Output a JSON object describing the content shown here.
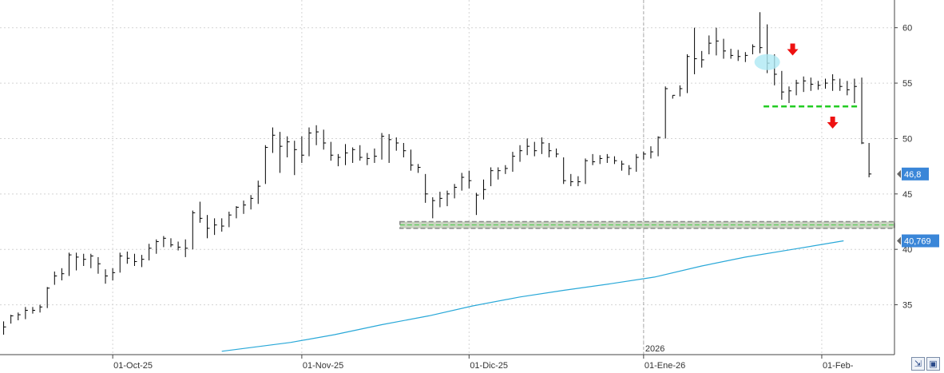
{
  "chart_data": {
    "type": "ohlc",
    "y_axis": {
      "side": "right",
      "ticks": [
        35,
        40,
        45,
        50,
        55,
        60
      ],
      "range": [
        30.5,
        62.5
      ]
    },
    "x_axis": {
      "ticks": [
        {
          "label": "01-Oct-25",
          "index": 31
        },
        {
          "label": "01-Nov-25",
          "index": 83
        },
        {
          "label": "01-Dic-25",
          "index": 129
        },
        {
          "label": "01-Ene-26",
          "index": 177
        },
        {
          "label": "01-Feb-",
          "index": 226
        }
      ],
      "year_marker": {
        "label": "2026",
        "index": 177
      },
      "range": [
        0,
        246
      ]
    },
    "last_price": {
      "label": "46,8",
      "value": 46.8
    },
    "moving_average": {
      "label": "40,769",
      "value": 40.769,
      "color": "#29a8d8",
      "points": [
        [
          61,
          30.8
        ],
        [
          80,
          31.6
        ],
        [
          92,
          32.3
        ],
        [
          105,
          33.2
        ],
        [
          118,
          34.0
        ],
        [
          130,
          34.9
        ],
        [
          143,
          35.7
        ],
        [
          155,
          36.3
        ],
        [
          168,
          36.9
        ],
        [
          180,
          37.5
        ],
        [
          193,
          38.5
        ],
        [
          205,
          39.3
        ],
        [
          218,
          40.0
        ],
        [
          232,
          40.769
        ]
      ]
    },
    "bars": [
      [
        1,
        33.5,
        32.3,
        33.0
      ],
      [
        3,
        34.1,
        33.3,
        34.0
      ],
      [
        5,
        34.3,
        33.6,
        34.1
      ],
      [
        7,
        34.8,
        33.7,
        34.5
      ],
      [
        9,
        34.8,
        34.2,
        34.5
      ],
      [
        11,
        35.0,
        34.3,
        34.8
      ],
      [
        13,
        36.6,
        34.7,
        36.5
      ],
      [
        15,
        38.0,
        36.8,
        37.6
      ],
      [
        17,
        38.3,
        37.2,
        37.8
      ],
      [
        19,
        39.7,
        37.6,
        39.5
      ],
      [
        21,
        39.7,
        38.1,
        39.3
      ],
      [
        23,
        39.6,
        38.5,
        39.1
      ],
      [
        25,
        39.6,
        38.3,
        39.4
      ],
      [
        27,
        39.3,
        37.8,
        38.7
      ],
      [
        29,
        38.2,
        36.9,
        37.6
      ],
      [
        31,
        38.3,
        37.2,
        37.9
      ],
      [
        33,
        39.7,
        37.9,
        39.4
      ],
      [
        35,
        39.8,
        38.7,
        39.2
      ],
      [
        37,
        39.6,
        38.5,
        38.9
      ],
      [
        39,
        39.5,
        38.4,
        39.1
      ],
      [
        41,
        40.5,
        39.0,
        40.1
      ],
      [
        43,
        40.9,
        39.6,
        40.7
      ],
      [
        45,
        41.2,
        40.2,
        41.0
      ],
      [
        47,
        41.0,
        40.2,
        40.4
      ],
      [
        49,
        40.7,
        39.9,
        40.2
      ],
      [
        51,
        40.9,
        39.3,
        40.1
      ],
      [
        53,
        43.5,
        40.0,
        43.3
      ],
      [
        55,
        44.3,
        42.4,
        42.8
      ],
      [
        57,
        43.1,
        41.0,
        41.9
      ],
      [
        59,
        42.8,
        41.3,
        42.2
      ],
      [
        61,
        42.8,
        41.6,
        42.1
      ],
      [
        63,
        43.4,
        42.0,
        43.1
      ],
      [
        65,
        43.9,
        42.8,
        43.8
      ],
      [
        67,
        44.4,
        43.2,
        44.0
      ],
      [
        69,
        44.9,
        43.6,
        44.6
      ],
      [
        71,
        46.2,
        44.1,
        45.7
      ],
      [
        73,
        49.4,
        45.9,
        49.2
      ],
      [
        75,
        51.0,
        48.7,
        50.3
      ],
      [
        77,
        50.6,
        46.9,
        49.3
      ],
      [
        79,
        50.2,
        48.3,
        49.7
      ],
      [
        81,
        49.8,
        46.7,
        49.0
      ],
      [
        83,
        50.2,
        47.8,
        48.5
      ],
      [
        85,
        51.0,
        48.4,
        50.5
      ],
      [
        87,
        51.2,
        49.4,
        50.6
      ],
      [
        89,
        50.8,
        49.0,
        49.6
      ],
      [
        91,
        49.7,
        48.0,
        48.5
      ],
      [
        93,
        48.6,
        47.5,
        48.3
      ],
      [
        95,
        49.5,
        47.6,
        48.7
      ],
      [
        97,
        49.2,
        47.8,
        49.0
      ],
      [
        99,
        49.4,
        48.0,
        48.3
      ],
      [
        101,
        48.7,
        47.6,
        48.2
      ],
      [
        103,
        49.1,
        47.8,
        48.4
      ],
      [
        105,
        50.5,
        48.1,
        50.2
      ],
      [
        107,
        50.4,
        47.8,
        49.9
      ],
      [
        109,
        50.1,
        48.9,
        49.6
      ],
      [
        111,
        49.6,
        48.3,
        48.9
      ],
      [
        113,
        49.0,
        47.1,
        47.6
      ],
      [
        115,
        47.7,
        46.9,
        47.4
      ],
      [
        117,
        46.8,
        44.2,
        45.0
      ],
      [
        119,
        44.7,
        42.8,
        44.4
      ],
      [
        121,
        45.2,
        43.8,
        44.6
      ],
      [
        123,
        45.3,
        43.9,
        45.0
      ],
      [
        125,
        45.9,
        44.6,
        45.6
      ],
      [
        127,
        46.9,
        45.3,
        46.5
      ],
      [
        129,
        47.1,
        45.5,
        46.2
      ],
      [
        131,
        45.1,
        43.1,
        44.9
      ],
      [
        133,
        46.3,
        44.5,
        45.4
      ],
      [
        135,
        47.4,
        45.7,
        47.1
      ],
      [
        137,
        47.4,
        46.3,
        47.1
      ],
      [
        139,
        47.6,
        46.8,
        47.3
      ],
      [
        141,
        48.8,
        47.0,
        48.4
      ],
      [
        143,
        49.4,
        47.9,
        48.9
      ],
      [
        145,
        50.0,
        48.5,
        49.3
      ],
      [
        147,
        49.7,
        48.4,
        48.9
      ],
      [
        149,
        50.1,
        48.6,
        49.6
      ],
      [
        151,
        49.6,
        48.3,
        48.9
      ],
      [
        153,
        49.1,
        48.3,
        48.6
      ],
      [
        155,
        48.3,
        45.9,
        46.2
      ],
      [
        157,
        46.8,
        45.7,
        46.1
      ],
      [
        159,
        46.6,
        45.7,
        46.1
      ],
      [
        161,
        48.2,
        45.9,
        48.0
      ],
      [
        163,
        48.6,
        47.6,
        47.9
      ],
      [
        165,
        48.5,
        47.7,
        48.2
      ],
      [
        167,
        48.6,
        47.8,
        48.3
      ],
      [
        169,
        48.4,
        47.7,
        48.0
      ],
      [
        171,
        48.0,
        47.1,
        47.7
      ],
      [
        173,
        47.6,
        46.7,
        47.3
      ],
      [
        175,
        48.6,
        47.0,
        48.3
      ],
      [
        177,
        48.8,
        48.1,
        48.6
      ],
      [
        179,
        49.3,
        48.2,
        48.8
      ],
      [
        181,
        50.2,
        48.4,
        50.1
      ],
      [
        183,
        54.7,
        50.0,
        54.5
      ],
      [
        185,
        53.9,
        53.6,
        53.9
      ],
      [
        187,
        54.8,
        53.8,
        54.5
      ],
      [
        189,
        57.6,
        54.1,
        57.4
      ],
      [
        191,
        60.0,
        55.8,
        57.2
      ],
      [
        193,
        57.9,
        56.4,
        57.1
      ],
      [
        195,
        59.3,
        57.6,
        58.6
      ],
      [
        197,
        60.0,
        57.5,
        58.8
      ],
      [
        199,
        59.0,
        57.2,
        57.9
      ],
      [
        201,
        58.1,
        57.2,
        57.5
      ],
      [
        203,
        58.0,
        57.0,
        57.4
      ],
      [
        205,
        57.8,
        56.9,
        57.5
      ],
      [
        207,
        58.5,
        57.6,
        58.3
      ],
      [
        209,
        61.4,
        57.7,
        58.2
      ],
      [
        211,
        60.3,
        55.9,
        56.8
      ],
      [
        213,
        57.6,
        54.8,
        55.8
      ],
      [
        215,
        56.1,
        53.5,
        54.2
      ],
      [
        217,
        54.7,
        53.2,
        54.3
      ],
      [
        219,
        55.3,
        53.9,
        55.0
      ],
      [
        221,
        55.6,
        54.2,
        55.2
      ],
      [
        223,
        55.5,
        54.3,
        54.9
      ],
      [
        225,
        55.2,
        54.4,
        54.8
      ],
      [
        227,
        55.4,
        54.5,
        55.0
      ],
      [
        229,
        55.8,
        54.3,
        55.3
      ],
      [
        231,
        55.4,
        54.3,
        54.7
      ],
      [
        233,
        55.2,
        53.9,
        54.4
      ],
      [
        235,
        55.4,
        53.2,
        54.7
      ],
      [
        237,
        55.5,
        49.5,
        49.6
      ],
      [
        239,
        49.6,
        46.5,
        46.8
      ]
    ],
    "annotations": {
      "support_band": {
        "from": 41.9,
        "to": 42.5,
        "x_start": 110,
        "x_end": 246
      },
      "broken_support": {
        "value": 52.9,
        "x_start": 210,
        "x_end": 236,
        "color": "#22cc22"
      },
      "highlight_ellipse": {
        "index": 211,
        "value": 56.9,
        "color": "#aee8f4"
      },
      "down_arrows": [
        {
          "index": 218,
          "value": 58.0
        },
        {
          "index": 229,
          "value": 51.4
        }
      ]
    },
    "colors": {
      "bars": "#000000",
      "grid": "#d4d4d4",
      "tag": "#3a86d8",
      "arrows": "#ee1111",
      "band_fill": "#c9d5c0",
      "band_border": "#888888",
      "band_dash": "#44cc44"
    }
  }
}
